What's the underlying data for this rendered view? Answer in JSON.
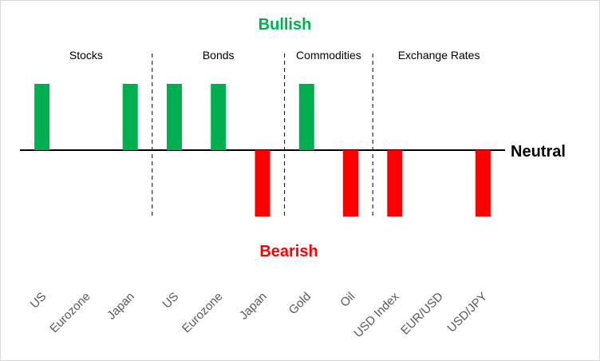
{
  "chart_data": {
    "type": "bar",
    "title": "",
    "xlabel": "",
    "ylabel": "",
    "ylim": [
      -1,
      1
    ],
    "grid": false,
    "labels": {
      "top": "Bullish",
      "bottom": "Bearish",
      "baseline": "Neutral"
    },
    "groups": [
      {
        "label": "Stocks",
        "start": 0,
        "end": 2
      },
      {
        "label": "Bonds",
        "start": 3,
        "end": 5
      },
      {
        "label": "Commodities",
        "start": 6,
        "end": 7
      },
      {
        "label": "Exchange Rates",
        "start": 8,
        "end": 10
      }
    ],
    "categories": [
      "US",
      "Eurozone",
      "Japan",
      "US",
      "Eurozone",
      "Japan",
      "Gold",
      "Oil",
      "USD Index",
      "EUR/USD",
      "USD/JPY"
    ],
    "values": [
      1,
      0,
      1,
      1,
      1,
      -1,
      1,
      -1,
      -1,
      0,
      -1
    ],
    "colors": {
      "bullish": "#00b050",
      "bearish": "#ff0000",
      "axis": "#000000",
      "divider": "#000000"
    }
  }
}
